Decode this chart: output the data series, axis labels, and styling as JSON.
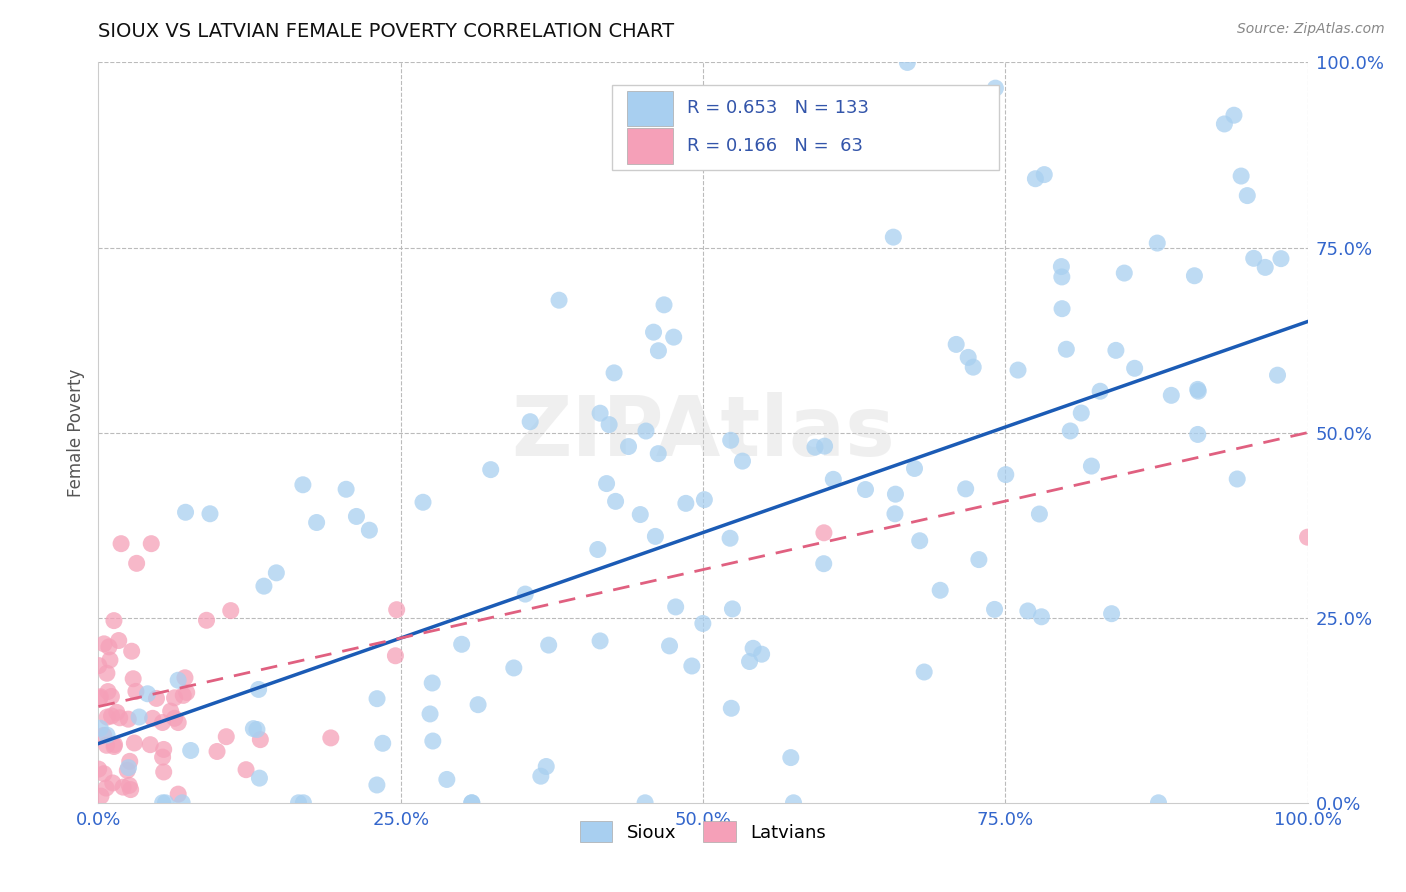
{
  "title": "SIOUX VS LATVIAN FEMALE POVERTY CORRELATION CHART",
  "source": "Source: ZipAtlas.com",
  "ylabel": "Female Poverty",
  "xlim": [
    0.0,
    1.0
  ],
  "ylim": [
    0.0,
    1.0
  ],
  "xticks": [
    0.0,
    0.25,
    0.5,
    0.75,
    1.0
  ],
  "yticks": [
    0.0,
    0.25,
    0.5,
    0.75,
    1.0
  ],
  "xtick_labels": [
    "0.0%",
    "25.0%",
    "50.0%",
    "75.0%",
    "100.0%"
  ],
  "ytick_labels": [
    "0.0%",
    "25.0%",
    "50.0%",
    "75.0%",
    "100.0%"
  ],
  "sioux_color": "#A8CFF0",
  "latvian_color": "#F5A0B8",
  "sioux_line_color": "#1B5BB5",
  "latvian_line_color": "#E06080",
  "sioux_R": 0.653,
  "sioux_N": 133,
  "latvian_R": 0.166,
  "latvian_N": 63,
  "background_color": "#FFFFFF",
  "grid_color": "#BBBBBB",
  "title_color": "#111111",
  "axis_label_color": "#555555",
  "tick_color": "#3366CC",
  "legend_R_color": "#3355AA",
  "watermark": "ZIPAtlas"
}
